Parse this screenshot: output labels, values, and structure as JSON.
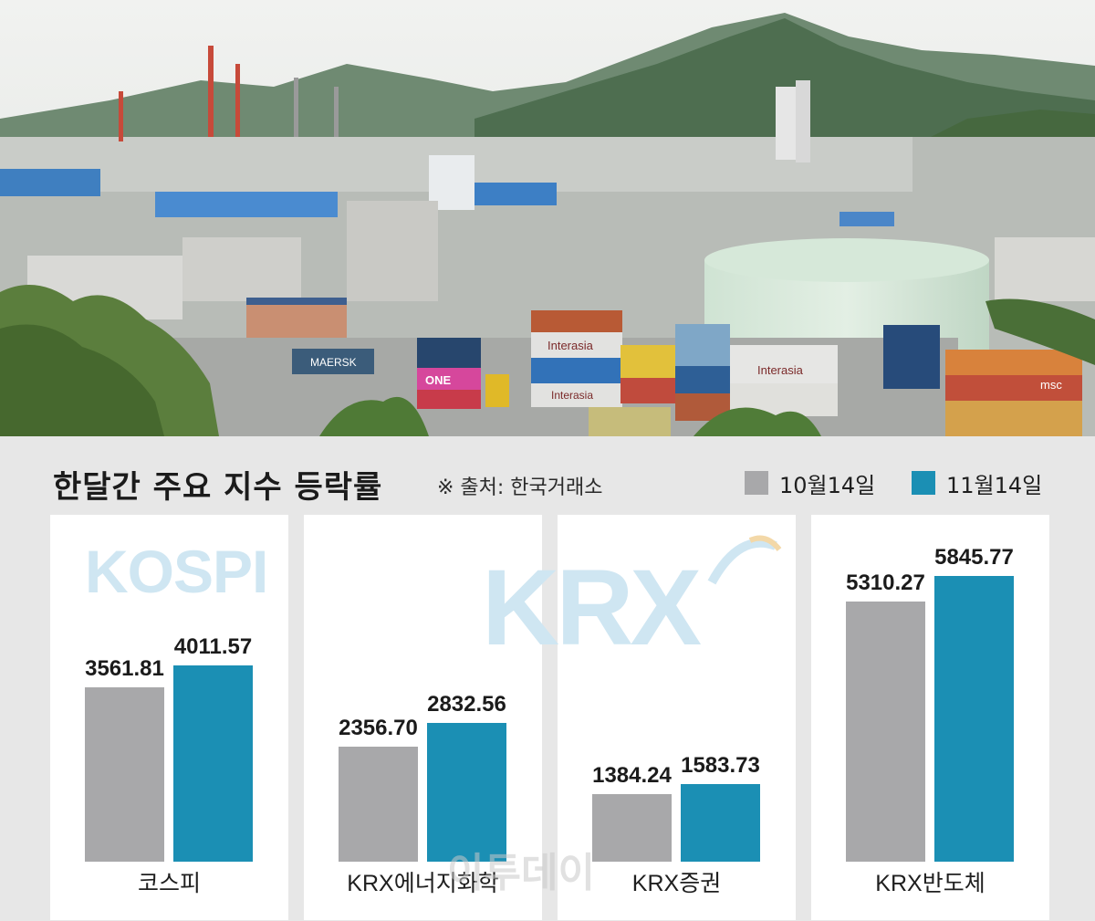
{
  "header": {
    "title": "한달간 주요 지수 등락률",
    "source": "※ 출처: 한국거래소"
  },
  "legend": [
    {
      "label": "10월14일",
      "color": "#a8a8aa"
    },
    {
      "label": "11월14일",
      "color": "#1b8fb4"
    }
  ],
  "watermarks": {
    "kospi": "KOSPI",
    "krx": "KRX"
  },
  "brand": "이투데이",
  "colors": {
    "oct": "#a8a8aa",
    "nov": "#1b8fb4",
    "panel": "#ffffff",
    "background": "#e7e7e7",
    "watermark": "#cfe6f2"
  },
  "photo": {
    "container_text_1": "MAERSK",
    "container_text_2": "ONE",
    "container_text_3": "Interasia",
    "container_text_4": "Interasia",
    "container_text_5": "Interasia",
    "container_text_6": "msc"
  },
  "chart_data": {
    "type": "bar",
    "title": "한달간 주요 지수 등락률",
    "categories": [
      "코스피",
      "KRX에너지화학",
      "KRX증권",
      "KRX반도체"
    ],
    "series": [
      {
        "name": "10월14일",
        "values": [
          3561.81,
          2356.7,
          1384.24,
          5310.27
        ]
      },
      {
        "name": "11월14일",
        "values": [
          4011.57,
          2832.56,
          1583.73,
          5845.77
        ]
      }
    ],
    "value_labels": [
      [
        "3561.81",
        "4011.57"
      ],
      [
        "2356.70",
        "2832.56"
      ],
      [
        "1384.24",
        "1583.73"
      ],
      [
        "5310.27",
        "5845.77"
      ]
    ],
    "grid": false,
    "legend_position": "top-right"
  }
}
